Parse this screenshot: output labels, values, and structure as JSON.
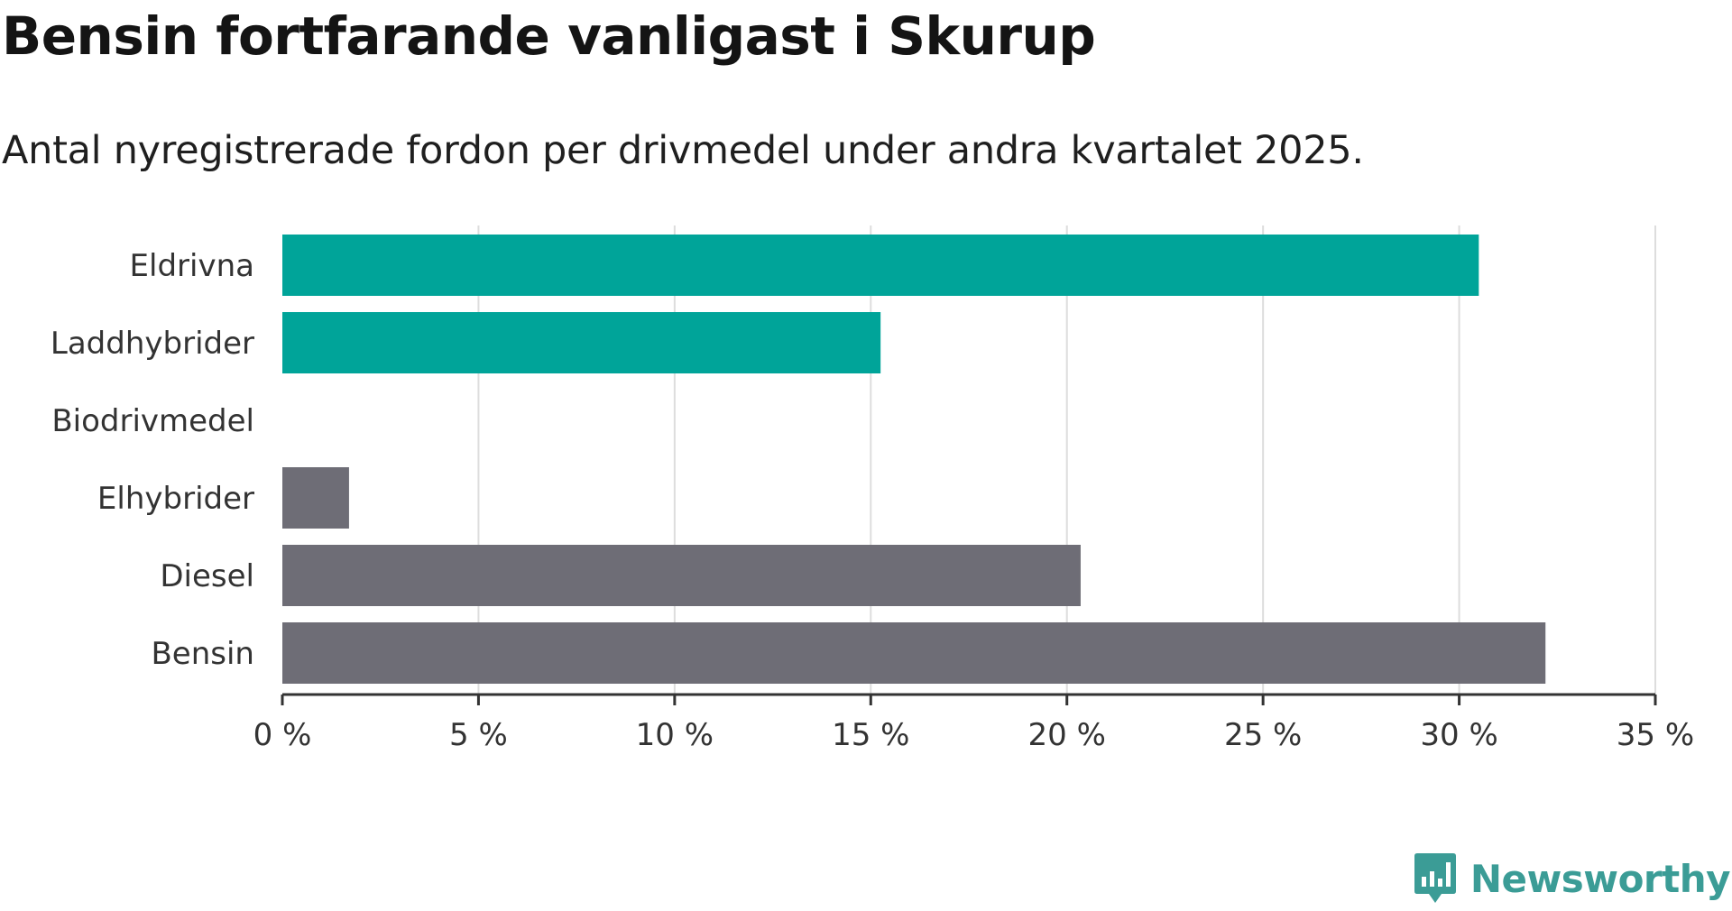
{
  "title": "Bensin fortfarande vanligast i Skurup",
  "subtitle": "Antal nyregistrerade fordon per drivmedel under andra kvartalet 2025.",
  "brand": "Newsworthy",
  "colors": {
    "highlight": "#00a499",
    "default": "#6e6d76",
    "grid": "#dddddd",
    "axis": "#333333",
    "brand": "#3b9c96"
  },
  "chart_data": {
    "type": "bar",
    "orientation": "horizontal",
    "categories": [
      "Eldrivna",
      "Laddhybrider",
      "Biodrivmedel",
      "Elhybrider",
      "Diesel",
      "Bensin"
    ],
    "values": [
      30.5,
      15.25,
      0,
      1.7,
      20.35,
      32.2
    ],
    "bar_colors": [
      "highlight",
      "highlight",
      "highlight",
      "default",
      "default",
      "default"
    ],
    "xlim": [
      0,
      35
    ],
    "ticks": [
      0,
      5,
      10,
      15,
      20,
      25,
      30,
      35
    ],
    "tick_labels": [
      "0 %",
      "5 %",
      "10 %",
      "15 %",
      "20 %",
      "25 %",
      "30 %",
      "35 %"
    ],
    "grid": true
  }
}
